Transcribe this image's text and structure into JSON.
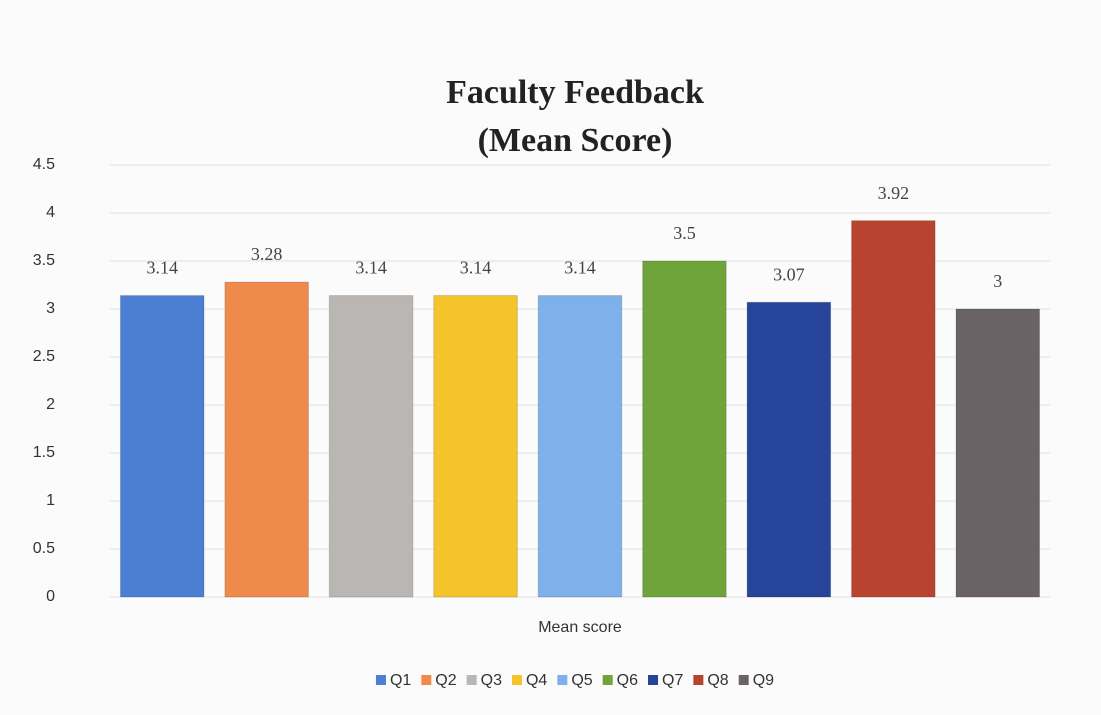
{
  "chart_data": {
    "type": "bar",
    "title": "Faculty Feedback",
    "subtitle": "(Mean Score)",
    "categories": [
      "Mean score"
    ],
    "series": [
      {
        "name": "Q1",
        "color": "#4a7fd4",
        "values": [
          3.14
        ]
      },
      {
        "name": "Q2",
        "color": "#f08a4b",
        "values": [
          3.28
        ]
      },
      {
        "name": "Q3",
        "color": "#b9b6b4",
        "values": [
          3.14
        ]
      },
      {
        "name": "Q4",
        "color": "#f5c42a",
        "values": [
          3.14
        ]
      },
      {
        "name": "Q5",
        "color": "#7eb0ec",
        "values": [
          3.14
        ]
      },
      {
        "name": "Q6",
        "color": "#6fa43a",
        "values": [
          3.5
        ]
      },
      {
        "name": "Q7",
        "color": "#26459a",
        "values": [
          3.07
        ]
      },
      {
        "name": "Q8",
        "color": "#b8432f",
        "values": [
          3.92
        ]
      },
      {
        "name": "Q9",
        "color": "#6a6365",
        "values": [
          3
        ]
      }
    ],
    "ylim": [
      0,
      4.5
    ],
    "yticks": [
      0,
      0.5,
      1,
      1.5,
      2,
      2.5,
      3,
      3.5,
      4,
      4.5
    ],
    "grid": true,
    "legend": "bottom"
  }
}
